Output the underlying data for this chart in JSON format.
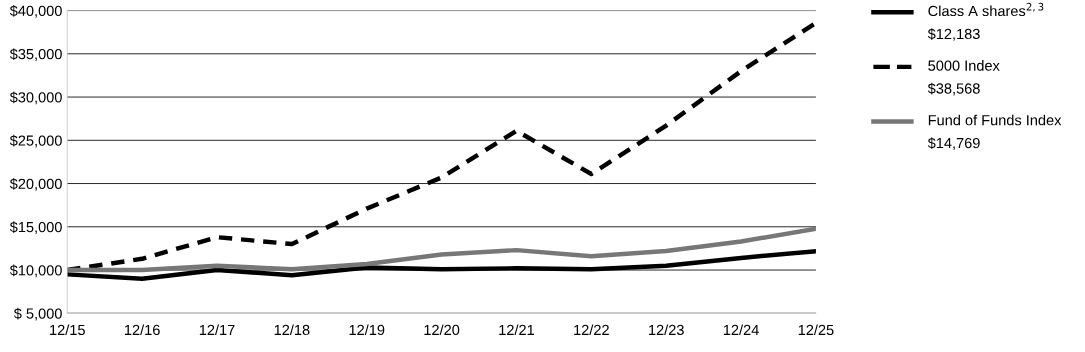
{
  "chart_data": {
    "type": "line",
    "categories": [
      "12/15",
      "12/16",
      "12/17",
      "12/18",
      "12/19",
      "12/20",
      "12/21",
      "12/22",
      "12/23",
      "12/24",
      "12/25"
    ],
    "series": [
      {
        "name": "Class A shares$^{2,3}$",
        "color": "#000000",
        "line_style": "solid",
        "values": [
          9500,
          9000,
          10000,
          9400,
          10300,
          10100,
          10200,
          10100,
          10500,
          11400,
          12183
        ]
      },
      {
        "name": "5000 Index",
        "color": "#000000",
        "line_style": "dashed",
        "values": [
          10000,
          11300,
          13800,
          13000,
          17100,
          20700,
          26100,
          21100,
          26700,
          33000,
          38568
        ]
      },
      {
        "name": "Fund of Funds Index",
        "color": "#777777",
        "line_style": "solid",
        "values": [
          10000,
          10000,
          10500,
          10100,
          10700,
          11800,
          12300,
          11600,
          12200,
          13300,
          14769
        ]
      }
    ],
    "annotations": [
      "$12,183",
      "$38,568",
      "$14,769"
    ],
    "ylim": [
      5000,
      40000
    ],
    "yticks": [
      {
        "value": 5000,
        "label": "$ 5,000"
      },
      {
        "value": 10000,
        "label": "$10,000"
      },
      {
        "value": 15000,
        "label": "$15,000"
      },
      {
        "value": 20000,
        "label": "$20,000"
      },
      {
        "value": 25000,
        "label": "$25,000"
      },
      {
        "value": 30000,
        "label": "$30,000"
      },
      {
        "value": 35000,
        "label": "$35,000"
      },
      {
        "value": 40000,
        "label": "$40,000"
      }
    ],
    "grid": "y",
    "legend": "right",
    "marker": "none"
  }
}
